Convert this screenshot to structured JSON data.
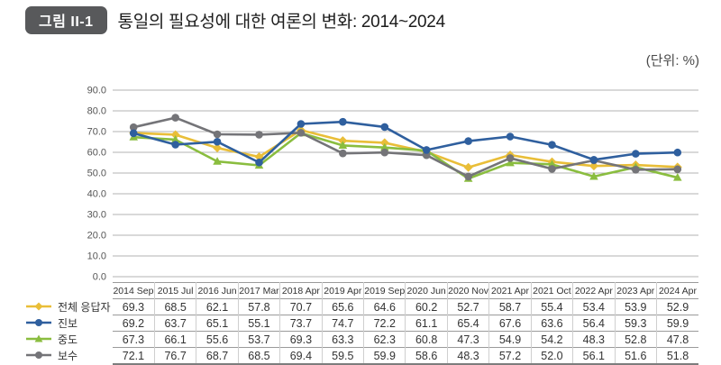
{
  "header": {
    "figure_label": "그림 II-1",
    "title": "통일의 필요성에 대한 여론의 변화: 2014~2024",
    "unit_label": "(단위:  %)"
  },
  "chart_data": {
    "type": "line",
    "title": "통일의 필요성에 대한 여론의 변화: 2014~2024",
    "xlabel": "",
    "ylabel": "%",
    "ylim": [
      0,
      90
    ],
    "ytick_step": 10,
    "ytick_labels": [
      "0.0",
      "10.0",
      "20.0",
      "30.0",
      "40.0",
      "50.0",
      "60.0",
      "70.0",
      "80.0",
      "90.0"
    ],
    "grid": true,
    "legend_position": "left-of-table",
    "categories": [
      "2014 Sep",
      "2015 Jul",
      "2016 Jun",
      "2017 Mar",
      "2018 Apr",
      "2019 Apr",
      "2019 Sep",
      "2020 Jun",
      "2020 Nov",
      "2021 Apr",
      "2021 Oct",
      "2022 Apr",
      "2023 Apr",
      "2024 Apr"
    ],
    "series": [
      {
        "key": "all-respondents",
        "name": "전체 응답자",
        "color": "#e9be38",
        "marker": "diamond",
        "values": [
          69.3,
          68.5,
          62.1,
          57.8,
          70.7,
          65.6,
          64.6,
          60.2,
          52.7,
          58.7,
          55.4,
          53.4,
          53.9,
          52.9
        ]
      },
      {
        "key": "progressive",
        "name": "진보",
        "color": "#2f5f9e",
        "marker": "circle",
        "values": [
          69.2,
          63.7,
          65.1,
          55.1,
          73.7,
          74.7,
          72.2,
          61.1,
          65.4,
          67.6,
          63.6,
          56.4,
          59.3,
          59.9
        ]
      },
      {
        "key": "moderate",
        "name": "중도",
        "color": "#8abd3f",
        "marker": "triangle",
        "values": [
          67.3,
          66.1,
          55.6,
          53.7,
          69.3,
          63.3,
          62.3,
          60.8,
          47.3,
          54.9,
          54.2,
          48.3,
          52.8,
          47.8
        ]
      },
      {
        "key": "conservative",
        "name": "보수",
        "color": "#747478",
        "marker": "circle",
        "values": [
          72.1,
          76.7,
          68.7,
          68.5,
          69.4,
          59.5,
          59.9,
          58.6,
          48.3,
          57.2,
          52.0,
          56.1,
          51.6,
          51.8
        ]
      }
    ]
  }
}
